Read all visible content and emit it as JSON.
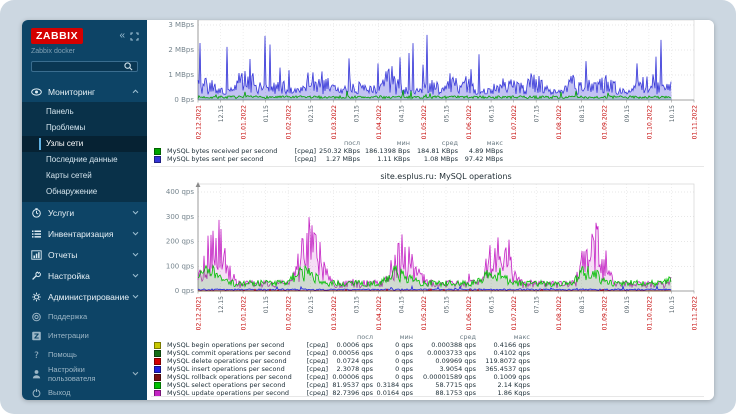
{
  "app": {
    "logo": "ZABBIX",
    "subtitle": "Zabbix docker"
  },
  "sidebar": {
    "search_placeholder": "",
    "main_menu": [
      {
        "label": "Мониторинг",
        "icon": "eye",
        "expanded": true,
        "submenu": [
          "Панель",
          "Проблемы",
          "Узлы сети",
          "Последние данные",
          "Карты сетей",
          "Обнаружение"
        ],
        "selected_submenu": "Узлы сети"
      },
      {
        "label": "Услуги",
        "icon": "clock"
      },
      {
        "label": "Инвентаризация",
        "icon": "list"
      },
      {
        "label": "Отчеты",
        "icon": "bar-chart"
      },
      {
        "label": "Настройка",
        "icon": "wrench"
      },
      {
        "label": "Администрирование",
        "icon": "gear"
      }
    ],
    "footer_menu": [
      {
        "label": "Поддержка",
        "icon": "support"
      },
      {
        "label": "Интеграции",
        "icon": "integrations"
      },
      {
        "label": "Помощь",
        "icon": "help"
      },
      {
        "label": "Настройки пользователя",
        "icon": "user"
      },
      {
        "label": "Выход",
        "icon": "signout"
      }
    ]
  },
  "chart_data": [
    {
      "type": "line",
      "title": "",
      "y_ticks": [
        "3 MBps",
        "2 MBps",
        "1 MBps",
        "0 Bps"
      ],
      "ylim": [
        0,
        3.2
      ],
      "grid": true,
      "legend_position": "bottom",
      "x_ticks": [
        {
          "label": "02.12.2021",
          "major": true
        },
        {
          "label": "12.15",
          "major": false
        },
        {
          "label": "01.01.2022",
          "major": true
        },
        {
          "label": "01.15",
          "major": false
        },
        {
          "label": "01.02.2022",
          "major": true
        },
        {
          "label": "02.15",
          "major": false
        },
        {
          "label": "01.03.2022",
          "major": true
        },
        {
          "label": "03.15",
          "major": false
        },
        {
          "label": "01.04.2022",
          "major": true
        },
        {
          "label": "04.15",
          "major": false
        },
        {
          "label": "01.05.2022",
          "major": true
        },
        {
          "label": "05.15",
          "major": false
        },
        {
          "label": "01.06.2022",
          "major": true
        },
        {
          "label": "06.15",
          "major": false
        },
        {
          "label": "01.07.2022",
          "major": true
        },
        {
          "label": "07.15",
          "major": false
        },
        {
          "label": "01.08.2022",
          "major": true
        },
        {
          "label": "08.15",
          "major": false
        },
        {
          "label": "01.09.2022",
          "major": true
        },
        {
          "label": "09.15",
          "major": false
        },
        {
          "label": "01.10.2022",
          "major": true
        },
        {
          "label": "10.15",
          "major": false
        },
        {
          "label": "01.11.2022",
          "major": true
        }
      ],
      "legend_columns": [
        "посл",
        "мин",
        "сред",
        "макс"
      ],
      "series": [
        {
          "name": "MySQL bytes received per second",
          "agg": "[сред]",
          "color": "#00a400",
          "profile": "net-recv",
          "last": "250.32 KBps",
          "min": "186.1398 Bps",
          "avg": "184.81 KBps",
          "max": "4.89 MBps"
        },
        {
          "name": "MySQL bytes sent per second",
          "agg": "[сред]",
          "color": "#3535d8",
          "profile": "net-sent",
          "last": "1.27 MBps",
          "min": "1.11 KBps",
          "avg": "1.08 MBps",
          "max": "97.42 MBps"
        }
      ]
    },
    {
      "type": "line",
      "title": "site.esplus.ru: MySQL operations",
      "y_ticks": [
        "400 qps",
        "300 qps",
        "200 qps",
        "100 qps",
        "0 qps"
      ],
      "ylim": [
        0,
        400
      ],
      "grid": true,
      "legend_position": "bottom",
      "x_ticks": [
        {
          "label": "02.12.2021",
          "major": true
        },
        {
          "label": "12.15",
          "major": false
        },
        {
          "label": "01.01.2022",
          "major": true
        },
        {
          "label": "01.15",
          "major": false
        },
        {
          "label": "01.02.2022",
          "major": true
        },
        {
          "label": "02.15",
          "major": false
        },
        {
          "label": "01.03.2022",
          "major": true
        },
        {
          "label": "03.15",
          "major": false
        },
        {
          "label": "01.04.2022",
          "major": true
        },
        {
          "label": "04.15",
          "major": false
        },
        {
          "label": "01.05.2022",
          "major": true
        },
        {
          "label": "05.15",
          "major": false
        },
        {
          "label": "01.06.2022",
          "major": true
        },
        {
          "label": "06.15",
          "major": false
        },
        {
          "label": "01.07.2022",
          "major": true
        },
        {
          "label": "07.15",
          "major": false
        },
        {
          "label": "01.08.2022",
          "major": true
        },
        {
          "label": "08.15",
          "major": false
        },
        {
          "label": "01.09.2022",
          "major": true
        },
        {
          "label": "09.15",
          "major": false
        },
        {
          "label": "01.10.2022",
          "major": true
        },
        {
          "label": "10.15",
          "major": false
        },
        {
          "label": "01.11.2022",
          "major": true
        }
      ],
      "legend_columns": [
        "посл",
        "мин",
        "сред",
        "макс"
      ],
      "series": [
        {
          "name": "MySQL begin operations per second",
          "agg": "[сред]",
          "color": "#c8c800",
          "profile": "ops-flat",
          "last": "0.0006 qps",
          "min": "0 qps",
          "avg": "0.000388 qps",
          "max": "0.4166 qps"
        },
        {
          "name": "MySQL commit operations per second",
          "agg": "[сред]",
          "color": "#156e15",
          "profile": "ops-flat",
          "last": "0.00056 qps",
          "min": "0 qps",
          "avg": "0.0003733 qps",
          "max": "0.4102 qps"
        },
        {
          "name": "MySQL delete operations per second",
          "agg": "[сред]",
          "color": "#d40000",
          "profile": "ops-delete",
          "last": "0.0724 qps",
          "min": "0 qps",
          "avg": "0.09969 qps",
          "max": "119.8072 qps"
        },
        {
          "name": "MySQL insert operations per second",
          "agg": "[сред]",
          "color": "#2222dd",
          "profile": "ops-insert",
          "last": "2.3078 qps",
          "min": "0 qps",
          "avg": "3.9054 qps",
          "max": "365.4537 qps"
        },
        {
          "name": "MySQL rollback operations per second",
          "agg": "[сред]",
          "color": "#7a1212",
          "profile": "ops-flat",
          "last": "0.00006 qps",
          "min": "0 qps",
          "avg": "0.00001589 qps",
          "max": "0.1009 qps"
        },
        {
          "name": "MySQL select operations per second",
          "agg": "[сред]",
          "color": "#00c000",
          "profile": "ops-select",
          "last": "81.9537 qps",
          "min": "0.3184 qps",
          "avg": "58.7715 qps",
          "max": "2.14 Kqps"
        },
        {
          "name": "MySQL update operations per second",
          "agg": "[сред]",
          "color": "#c424c4",
          "profile": "ops-update",
          "last": "82.7396 qps",
          "min": "0.0164 qps",
          "avg": "88.1753 qps",
          "max": "1.86 Kqps"
        }
      ]
    }
  ]
}
